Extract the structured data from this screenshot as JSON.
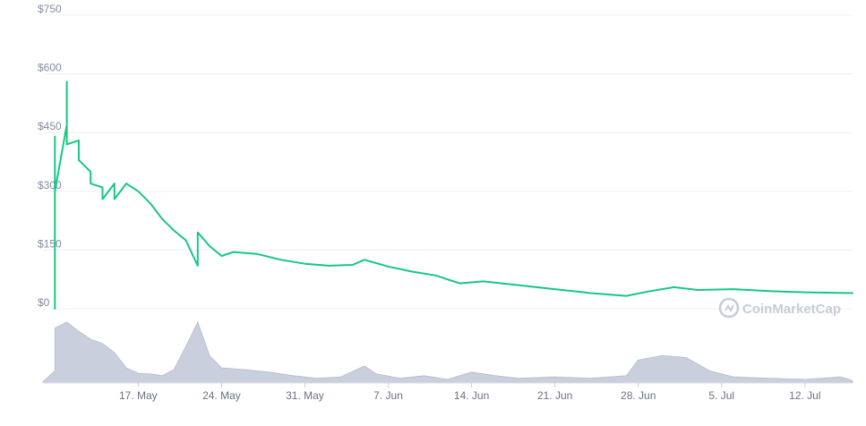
{
  "chart_data": {
    "type": "line",
    "watermark": "CoinMarketCap",
    "y_axis": {
      "range": [
        0,
        750
      ],
      "ticks": [
        0,
        150,
        300,
        450,
        600,
        750
      ],
      "tick_labels": [
        "$0",
        "$150",
        "$300",
        "$450",
        "$600",
        "$750"
      ],
      "grid": true
    },
    "x_axis": {
      "range_days": [
        "2021-05-09",
        "2021-07-16"
      ],
      "tick_labels": [
        "17. May",
        "24. May",
        "31. May",
        "7. Jun",
        "14. Jun",
        "21. Jun",
        "28. Jun",
        "5. Jul",
        "12. Jul"
      ],
      "tick_dates": [
        "2021-05-17",
        "2021-05-24",
        "2021-05-31",
        "2021-06-07",
        "2021-06-14",
        "2021-06-21",
        "2021-06-28",
        "2021-07-05",
        "2021-07-12"
      ]
    },
    "colors": {
      "price_line": "#16c784",
      "volume_area": "#c9cfdc",
      "volume_stroke": "#b3bbcc",
      "grid": "#eef0f4"
    },
    "series": [
      {
        "kind": "price",
        "points": [
          [
            "2021-05-10",
            0
          ],
          [
            "2021-05-10",
            280
          ],
          [
            "2021-05-10",
            440
          ],
          [
            "2021-05-10",
            300
          ],
          [
            "2021-05-11",
            470
          ],
          [
            "2021-05-11",
            580
          ],
          [
            "2021-05-11",
            420
          ],
          [
            "2021-05-12",
            430
          ],
          [
            "2021-05-12",
            380
          ],
          [
            "2021-05-13",
            350
          ],
          [
            "2021-05-13",
            320
          ],
          [
            "2021-05-14",
            310
          ],
          [
            "2021-05-14",
            280
          ],
          [
            "2021-05-15",
            320
          ],
          [
            "2021-05-15",
            280
          ],
          [
            "2021-05-16",
            320
          ],
          [
            "2021-05-17",
            300
          ],
          [
            "2021-05-18",
            270
          ],
          [
            "2021-05-19",
            230
          ],
          [
            "2021-05-20",
            200
          ],
          [
            "2021-05-21",
            175
          ],
          [
            "2021-05-22",
            110
          ],
          [
            "2021-05-22",
            195
          ],
          [
            "2021-05-23",
            160
          ],
          [
            "2021-05-24",
            135
          ],
          [
            "2021-05-25",
            145
          ],
          [
            "2021-05-27",
            140
          ],
          [
            "2021-05-29",
            125
          ],
          [
            "2021-05-31",
            115
          ],
          [
            "2021-06-02",
            110
          ],
          [
            "2021-06-04",
            112
          ],
          [
            "2021-06-05",
            125
          ],
          [
            "2021-06-07",
            108
          ],
          [
            "2021-06-09",
            95
          ],
          [
            "2021-06-11",
            85
          ],
          [
            "2021-06-13",
            65
          ],
          [
            "2021-06-15",
            70
          ],
          [
            "2021-06-18",
            60
          ],
          [
            "2021-06-21",
            50
          ],
          [
            "2021-06-24",
            40
          ],
          [
            "2021-06-27",
            33
          ],
          [
            "2021-06-29",
            45
          ],
          [
            "2021-07-01",
            55
          ],
          [
            "2021-07-03",
            48
          ],
          [
            "2021-07-06",
            50
          ],
          [
            "2021-07-09",
            45
          ],
          [
            "2021-07-12",
            42
          ],
          [
            "2021-07-16",
            40
          ]
        ]
      },
      {
        "kind": "volume",
        "points": [
          [
            "2021-05-09",
            0.02
          ],
          [
            "2021-05-10",
            0.2
          ],
          [
            "2021-05-10",
            0.9
          ],
          [
            "2021-05-11",
            1.0
          ],
          [
            "2021-05-12",
            0.85
          ],
          [
            "2021-05-13",
            0.72
          ],
          [
            "2021-05-14",
            0.65
          ],
          [
            "2021-05-15",
            0.5
          ],
          [
            "2021-05-16",
            0.25
          ],
          [
            "2021-05-17",
            0.16
          ],
          [
            "2021-05-18",
            0.15
          ],
          [
            "2021-05-19",
            0.12
          ],
          [
            "2021-05-20",
            0.22
          ],
          [
            "2021-05-21",
            0.6
          ],
          [
            "2021-05-22",
            1.0
          ],
          [
            "2021-05-23",
            0.45
          ],
          [
            "2021-05-24",
            0.25
          ],
          [
            "2021-05-26",
            0.22
          ],
          [
            "2021-05-28",
            0.18
          ],
          [
            "2021-05-30",
            0.12
          ],
          [
            "2021-06-01",
            0.08
          ],
          [
            "2021-06-03",
            0.1
          ],
          [
            "2021-06-05",
            0.28
          ],
          [
            "2021-06-06",
            0.15
          ],
          [
            "2021-06-08",
            0.08
          ],
          [
            "2021-06-10",
            0.12
          ],
          [
            "2021-06-12",
            0.06
          ],
          [
            "2021-06-14",
            0.18
          ],
          [
            "2021-06-16",
            0.12
          ],
          [
            "2021-06-18",
            0.08
          ],
          [
            "2021-06-21",
            0.1
          ],
          [
            "2021-06-24",
            0.08
          ],
          [
            "2021-06-27",
            0.12
          ],
          [
            "2021-06-28",
            0.38
          ],
          [
            "2021-06-30",
            0.45
          ],
          [
            "2021-07-02",
            0.42
          ],
          [
            "2021-07-04",
            0.2
          ],
          [
            "2021-07-06",
            0.1
          ],
          [
            "2021-07-09",
            0.08
          ],
          [
            "2021-07-12",
            0.06
          ],
          [
            "2021-07-15",
            0.1
          ],
          [
            "2021-07-16",
            0.04
          ]
        ]
      }
    ]
  }
}
